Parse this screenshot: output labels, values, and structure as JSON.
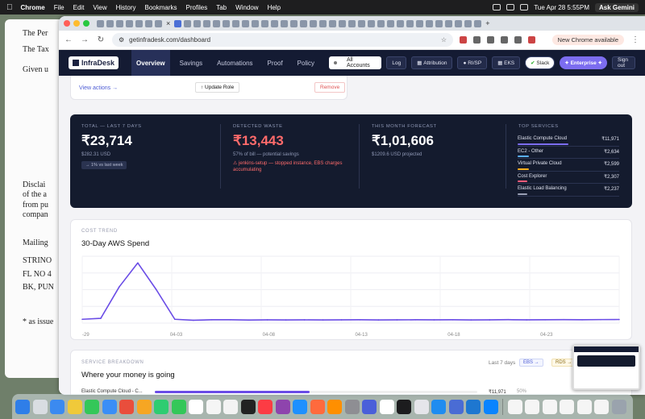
{
  "menubar": {
    "app": "Chrome",
    "items": [
      "File",
      "Edit",
      "View",
      "History",
      "Bookmarks",
      "Profiles",
      "Tab",
      "Window",
      "Help"
    ],
    "clock": "Tue Apr 28  5:55PM",
    "gemini": "Ask Gemini"
  },
  "bg_doc": {
    "lines": [
      "The Per",
      "The Tax",
      "Given u",
      "Disclai",
      "of the a",
      "from pu",
      "compan",
      "Mailing",
      "STRINO",
      "FL NO 4",
      "BK, PUN",
      "* as issue"
    ]
  },
  "browser": {
    "url": "getinfradesk.com/dashboard",
    "new_chrome": "New Chrome available"
  },
  "nav": {
    "logo": "InfraDesk",
    "links": [
      "Overview",
      "Savings",
      "Automations",
      "Proof",
      "Policy"
    ],
    "account": "All Accounts",
    "log": "Log",
    "attribution": "Attribution",
    "risp": "RI/SP",
    "eks": "EKS",
    "slack": "Slack",
    "enterprise": "Enterprise",
    "signout": "Sign out"
  },
  "top_card": {
    "view_actions": "View actions →",
    "update_role": "↑ Update Role",
    "remove": "Remove"
  },
  "kpis": {
    "total": {
      "label": "TOTAL — LAST 7 DAYS",
      "value": "₹23,714",
      "sub": "$282.31 USD",
      "chip": "→ 1% vs last week"
    },
    "waste": {
      "label": "DETECTED WASTE",
      "value": "₹13,443",
      "sub": "57% of bill — potential savings",
      "warn": "⚠ jenkins-setup — stopped instance, EBS charges accumulating"
    },
    "forecast": {
      "label": "THIS MONTH FORECAST",
      "value": "₹1,01,606",
      "sub": "$1209.6 USD projected"
    },
    "top_services": {
      "label": "TOP SERVICES",
      "items": [
        {
          "name": "Elastic Compute Cloud",
          "value": "₹11,971",
          "share": 1.0,
          "color": "#7c6df0"
        },
        {
          "name": "EC2 - Other",
          "value": "₹2,634",
          "share": 0.22,
          "color": "#5ab0ff"
        },
        {
          "name": "Virtual Private Cloud",
          "value": "₹2,599",
          "share": 0.22,
          "color": "#ffb020"
        },
        {
          "name": "Cost Explorer",
          "value": "₹2,307",
          "share": 0.19,
          "color": "#ff5c7a"
        },
        {
          "name": "Elastic Load Balancing",
          "value": "₹2,237",
          "share": 0.19,
          "color": "#9aa0b5"
        }
      ]
    }
  },
  "trend": {
    "label": "COST TREND",
    "title": "30-Day AWS Spend"
  },
  "chart_data": {
    "type": "line",
    "title": "30-Day AWS Spend",
    "x_tick_labels": [
      "-29",
      "04-03",
      "04-08",
      "04-13",
      "04-18",
      "04-23"
    ],
    "x": [
      0,
      1,
      2,
      3,
      4,
      5,
      6,
      7,
      8,
      9,
      10,
      11,
      12,
      13,
      14,
      15,
      16,
      17,
      18,
      19,
      20,
      21,
      22,
      23,
      24,
      25,
      26,
      27,
      28,
      29
    ],
    "values": [
      4,
      5,
      38,
      63,
      35,
      4,
      3,
      3.5,
      3.5,
      3.2,
      3.4,
      3.3,
      3.4,
      3.3,
      3.4,
      3.5,
      3.3,
      3.4,
      3.5,
      3.4,
      3.5,
      3.3,
      3.4,
      3.6,
      3.4,
      3.5,
      3.6,
      3.5,
      3.7,
      3.8
    ],
    "ylim": [
      0,
      70
    ],
    "grid": true,
    "color": "#6a4ce6"
  },
  "breakdown": {
    "label": "SERVICE BREAKDOWN",
    "title": "Where your money is going",
    "range": "Last 7 days",
    "tag_ebs": "EBS →",
    "tag_rds": "RDS →",
    "row": {
      "name": "Elastic Compute Cloud - C...",
      "value": "₹11,971",
      "pct": "50%",
      "share": 0.5
    }
  }
}
